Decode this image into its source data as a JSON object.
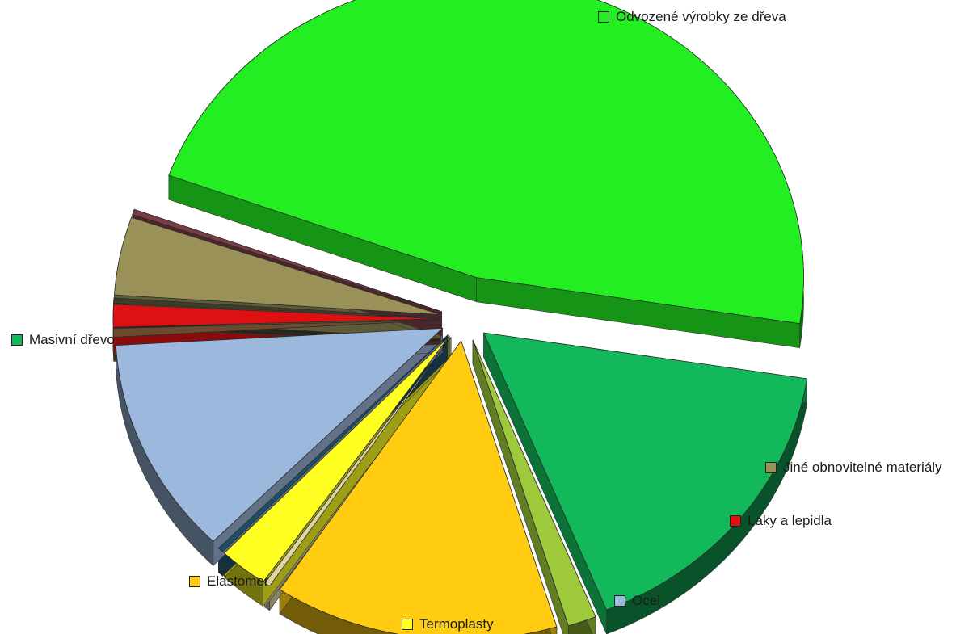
{
  "chart_data": {
    "type": "pie",
    "three_d": true,
    "exploded": true,
    "legend_placement": "labels next to slices",
    "series": [
      {
        "values": [
          50,
          17.5,
          1.5,
          15,
          0.3,
          2.6,
          0.3,
          12.5,
          0.5,
          1.3,
          0.3,
          4.5,
          0.3
        ],
        "labels": [
          "Odvozené výrobky ze dřeva",
          "Masivní dřevo",
          "",
          "Elastomer",
          "",
          "Termoplasty",
          "",
          "Ocel",
          "",
          "Laky a lepidla",
          "",
          "Jiné obnovitelné materiály",
          ""
        ],
        "colors": [
          "#22ee22",
          "#12b85a",
          "#9ec93a",
          "#ffcc11",
          "#ddd6a0",
          "#ffff22",
          "#1e4f64",
          "#9cb8dc",
          "#6b4a30",
          "#dd1111",
          "#3e3e26",
          "#9a9158",
          "#7a3d44"
        ]
      }
    ]
  }
}
